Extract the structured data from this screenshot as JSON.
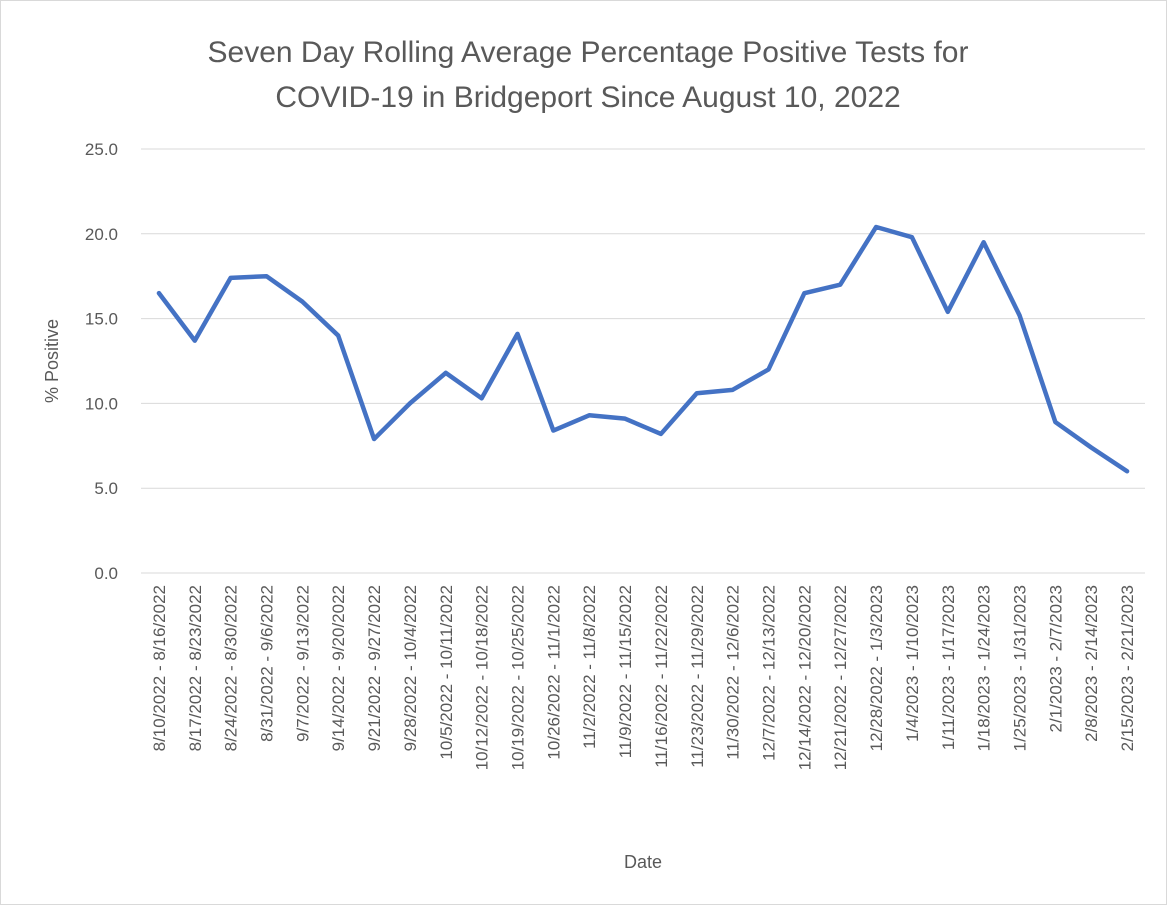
{
  "chart_data": {
    "type": "line",
    "title": [
      "Seven Day Rolling Average Percentage Positive Tests for",
      "COVID-19 in Bridgeport Since August 10, 2022"
    ],
    "x_label": "Date",
    "y_label": "% Positive",
    "categories": [
      "8/10/2022 - 8/16/2022",
      "8/17/2022 - 8/23/2022",
      "8/24/2022 - 8/30/2022",
      "8/31/2022 - 9/6/2022",
      "9/7/2022 - 9/13/2022",
      "9/14/2022 - 9/20/2022",
      "9/21/2022 - 9/27/2022",
      "9/28/2022 - 10/4/2022",
      "10/5/2022 - 10/11/2022",
      "10/12/2022 - 10/18/2022",
      "10/19/2022 - 10/25/2022",
      "10/26/2022 - 11/1/2022",
      "11/2/2022 - 11/8/2022",
      "11/9/2022 - 11/15/2022",
      "11/16/2022 - 11/22/2022",
      "11/23/2022 - 11/29/2022",
      "11/30/2022 - 12/6/2022",
      "12/7/2022 - 12/13/2022",
      "12/14/2022 - 12/20/2022",
      "12/21/2022 - 12/27/2022",
      "12/28/2022 - 1/3/2023",
      "1/4/2023 - 1/10/2023",
      "1/11/2023 - 1/17/2023",
      "1/18/2023 - 1/24/2023",
      "1/25/2023 - 1/31/2023",
      "2/1/2023 - 2/7/2023",
      "2/8/2023 - 2/14/2023",
      "2/15/2023 - 2/21/2023"
    ],
    "series": [
      {
        "name": "% Positive",
        "color": "#4472c4",
        "values": [
          16.5,
          13.7,
          17.4,
          17.5,
          16.0,
          14.0,
          7.9,
          10.0,
          11.8,
          10.3,
          14.1,
          8.4,
          9.3,
          9.1,
          8.2,
          10.6,
          10.8,
          12.0,
          16.5,
          17.0,
          20.4,
          19.8,
          15.4,
          19.5,
          15.2,
          8.9,
          7.4,
          6.0
        ]
      }
    ],
    "ylim": [
      0,
      25
    ],
    "yticks": [
      {
        "value": 0,
        "label": "0.0"
      },
      {
        "value": 5,
        "label": "5.0"
      },
      {
        "value": 10,
        "label": "10.0"
      },
      {
        "value": 15,
        "label": "15.0"
      },
      {
        "value": 20,
        "label": "20.0"
      },
      {
        "value": 25,
        "label": "25.0"
      }
    ],
    "grid": true
  }
}
